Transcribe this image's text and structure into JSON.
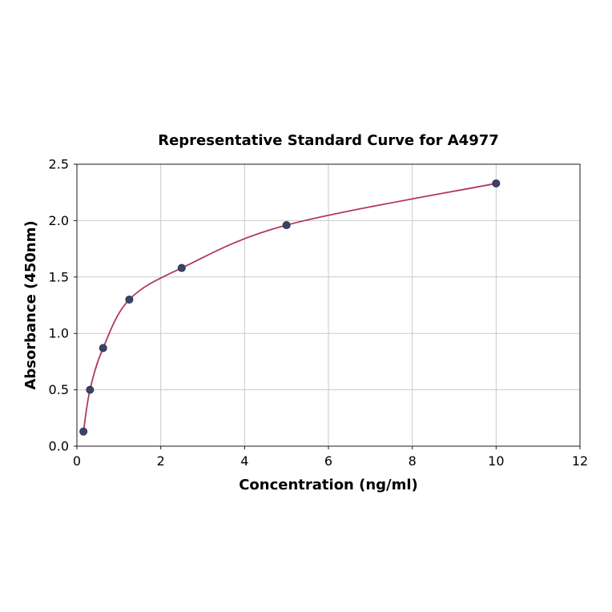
{
  "chart_data": {
    "type": "scatter",
    "title": "Representative Standard Curve for A4977",
    "xlabel": "Concentration (ng/ml)",
    "ylabel": "Absorbance (450nm)",
    "xlim": [
      0,
      12
    ],
    "ylim": [
      0,
      2.5
    ],
    "xticks": [
      0,
      2,
      4,
      6,
      8,
      10,
      12
    ],
    "xtick_labels": [
      "0",
      "2",
      "4",
      "6",
      "8",
      "10",
      "12"
    ],
    "yticks": [
      0,
      0.5,
      1,
      1.5,
      2,
      2.5
    ],
    "ytick_labels": [
      "0.0",
      "0.5",
      "1.0",
      "1.5",
      "2.0",
      "2.5"
    ],
    "grid": true,
    "legend": "none",
    "series": [
      {
        "name": "standards",
        "x": [
          0.156,
          0.3125,
          0.625,
          1.25,
          2.5,
          5,
          10
        ],
        "y": [
          0.13,
          0.5,
          0.87,
          1.3,
          1.58,
          1.96,
          2.33
        ]
      }
    ],
    "colors": {
      "curve": "#b23a5a",
      "point": "#3b4468",
      "point_edge": "#2a3254",
      "grid": "#c9c9c9",
      "frame": "#1a1a1a",
      "text": "#000000",
      "background": "#ffffff"
    }
  }
}
